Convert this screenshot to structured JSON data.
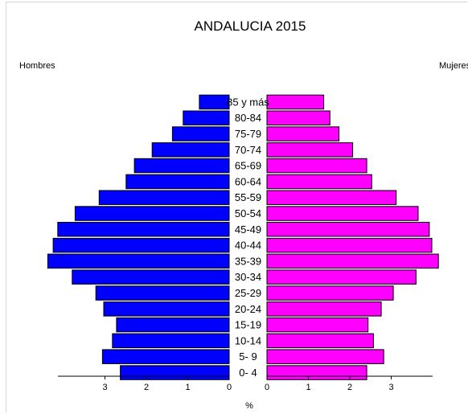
{
  "chart_data": {
    "type": "bar",
    "title": "ANDALUCIA 2015",
    "left_label": "Hombres",
    "right_label": "Mujeres",
    "xlabel": "%",
    "categories": [
      "0- 4",
      "5- 9",
      "10-14",
      "15-19",
      "20-24",
      "25-29",
      "30-34",
      "35-39",
      "40-44",
      "45-49",
      "50-54",
      "55-59",
      "60-64",
      "65-69",
      "70-74",
      "75-79",
      "80-84",
      "85 y más"
    ],
    "series": [
      {
        "name": "Hombres",
        "color": "#0000ff",
        "values": [
          2.63,
          3.06,
          2.82,
          2.72,
          3.03,
          3.22,
          3.79,
          4.38,
          4.25,
          4.14,
          3.72,
          3.14,
          2.49,
          2.29,
          1.86,
          1.37,
          1.11,
          0.72
        ]
      },
      {
        "name": "Mujeres",
        "color": "#ff00ff",
        "values": [
          2.41,
          2.82,
          2.57,
          2.44,
          2.76,
          3.05,
          3.6,
          4.14,
          3.98,
          3.92,
          3.65,
          3.12,
          2.53,
          2.41,
          2.07,
          1.74,
          1.52,
          1.37
        ]
      }
    ],
    "ticks_left": [
      "3",
      "2",
      "1",
      "0"
    ],
    "ticks_right": [
      "0",
      "1",
      "2",
      "3"
    ],
    "xlim": [
      0,
      4.3
    ],
    "grid": false,
    "legend": "none"
  }
}
